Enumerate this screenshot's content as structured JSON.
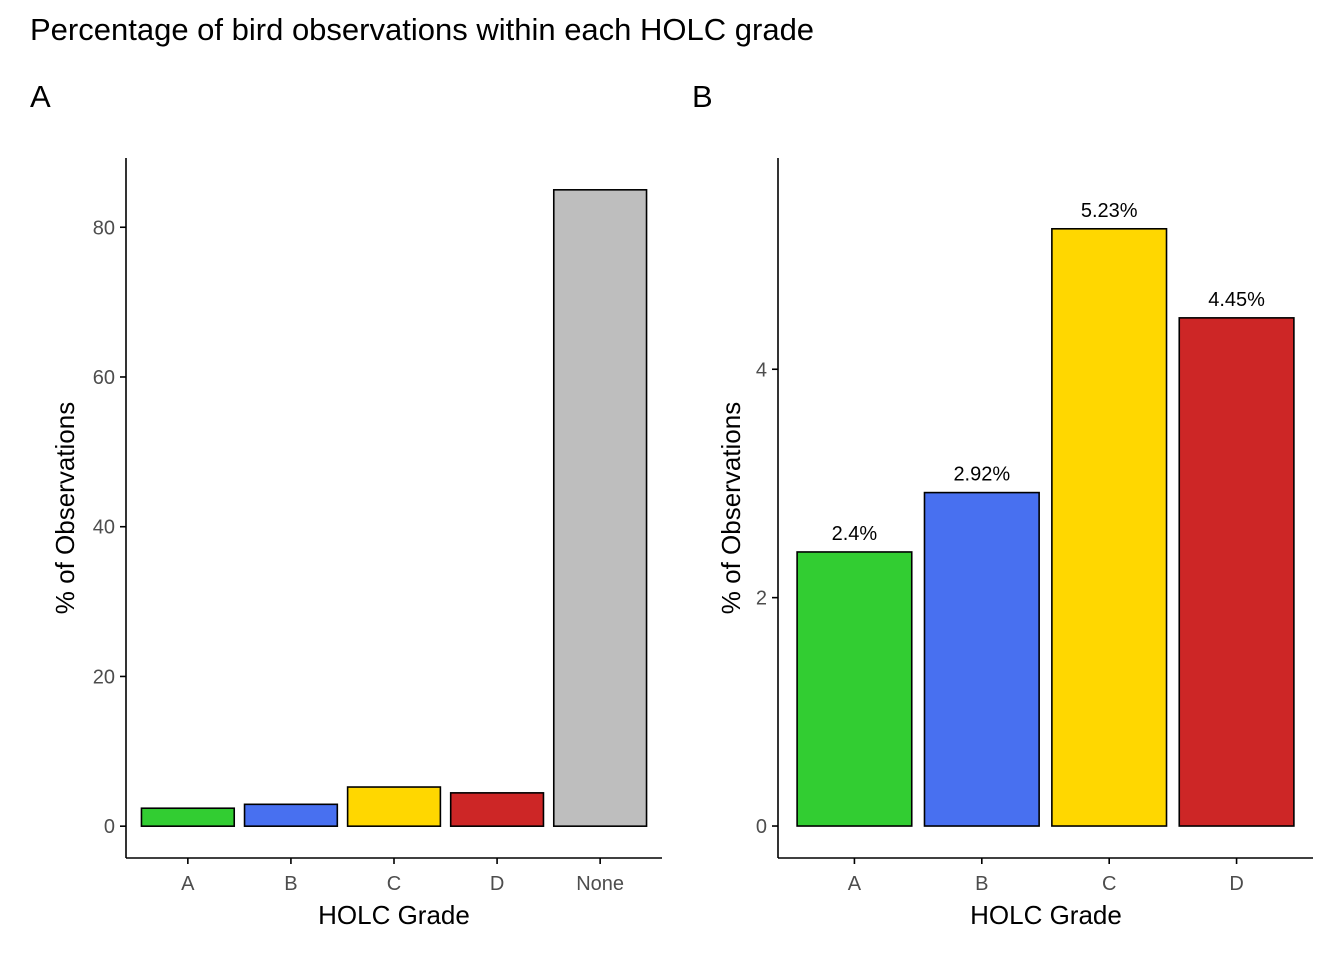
{
  "title": "Percentage of bird observations within each HOLC grade",
  "chart_data": [
    {
      "panel": "A",
      "type": "bar",
      "categories": [
        "A",
        "B",
        "C",
        "D",
        "None"
      ],
      "values": [
        2.4,
        2.92,
        5.23,
        4.45,
        85.0
      ],
      "colors": [
        "#32CD32",
        "#4870F0",
        "#FFD700",
        "#CD2626",
        "#BEBEBE"
      ],
      "xlabel": "HOLC Grade",
      "ylabel": "% of Observations",
      "ylim": [
        -4.25,
        89.25
      ],
      "yticks": [
        0,
        20,
        40,
        60,
        80
      ],
      "grid": false
    },
    {
      "panel": "B",
      "type": "bar",
      "categories": [
        "A",
        "B",
        "C",
        "D"
      ],
      "values": [
        2.4,
        2.92,
        5.23,
        4.45
      ],
      "data_labels": [
        "2.4%",
        "2.92%",
        "5.23%",
        "4.45%"
      ],
      "colors": [
        "#32CD32",
        "#4870F0",
        "#FFD700",
        "#CD2626"
      ],
      "xlabel": "HOLC Grade",
      "ylabel": "% of Observations",
      "ylim": [
        -0.28,
        5.85
      ],
      "yticks": [
        0,
        2,
        4
      ],
      "grid": false
    }
  ]
}
